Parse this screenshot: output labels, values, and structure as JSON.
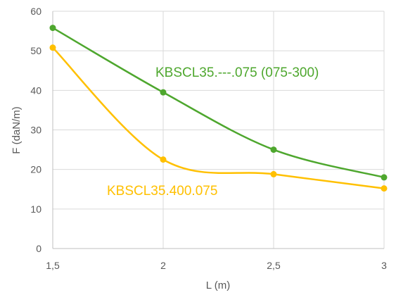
{
  "chart_data": {
    "type": "line",
    "xlabel": "L (m)",
    "ylabel": "F (daN/m)",
    "x_tick_labels": [
      "1,5",
      "2",
      "2,5",
      "3"
    ],
    "y_tick_labels": [
      "0",
      "10",
      "20",
      "30",
      "40",
      "50",
      "60"
    ],
    "x": [
      1.5,
      2,
      2.5,
      3
    ],
    "xlim": [
      1.5,
      3
    ],
    "ylim": [
      0,
      60
    ],
    "grid": true,
    "legend": "none",
    "series": [
      {
        "name": "KBSCL35.---.075 (075-300)",
        "values": [
          55.8,
          39.5,
          25,
          18
        ],
        "color": "#4ea72e",
        "smooth": true
      },
      {
        "name": "KBSCL35.400.075",
        "values": [
          50.8,
          22.5,
          18.8,
          15.2
        ],
        "color": "#ffc000",
        "smooth": true
      }
    ]
  }
}
